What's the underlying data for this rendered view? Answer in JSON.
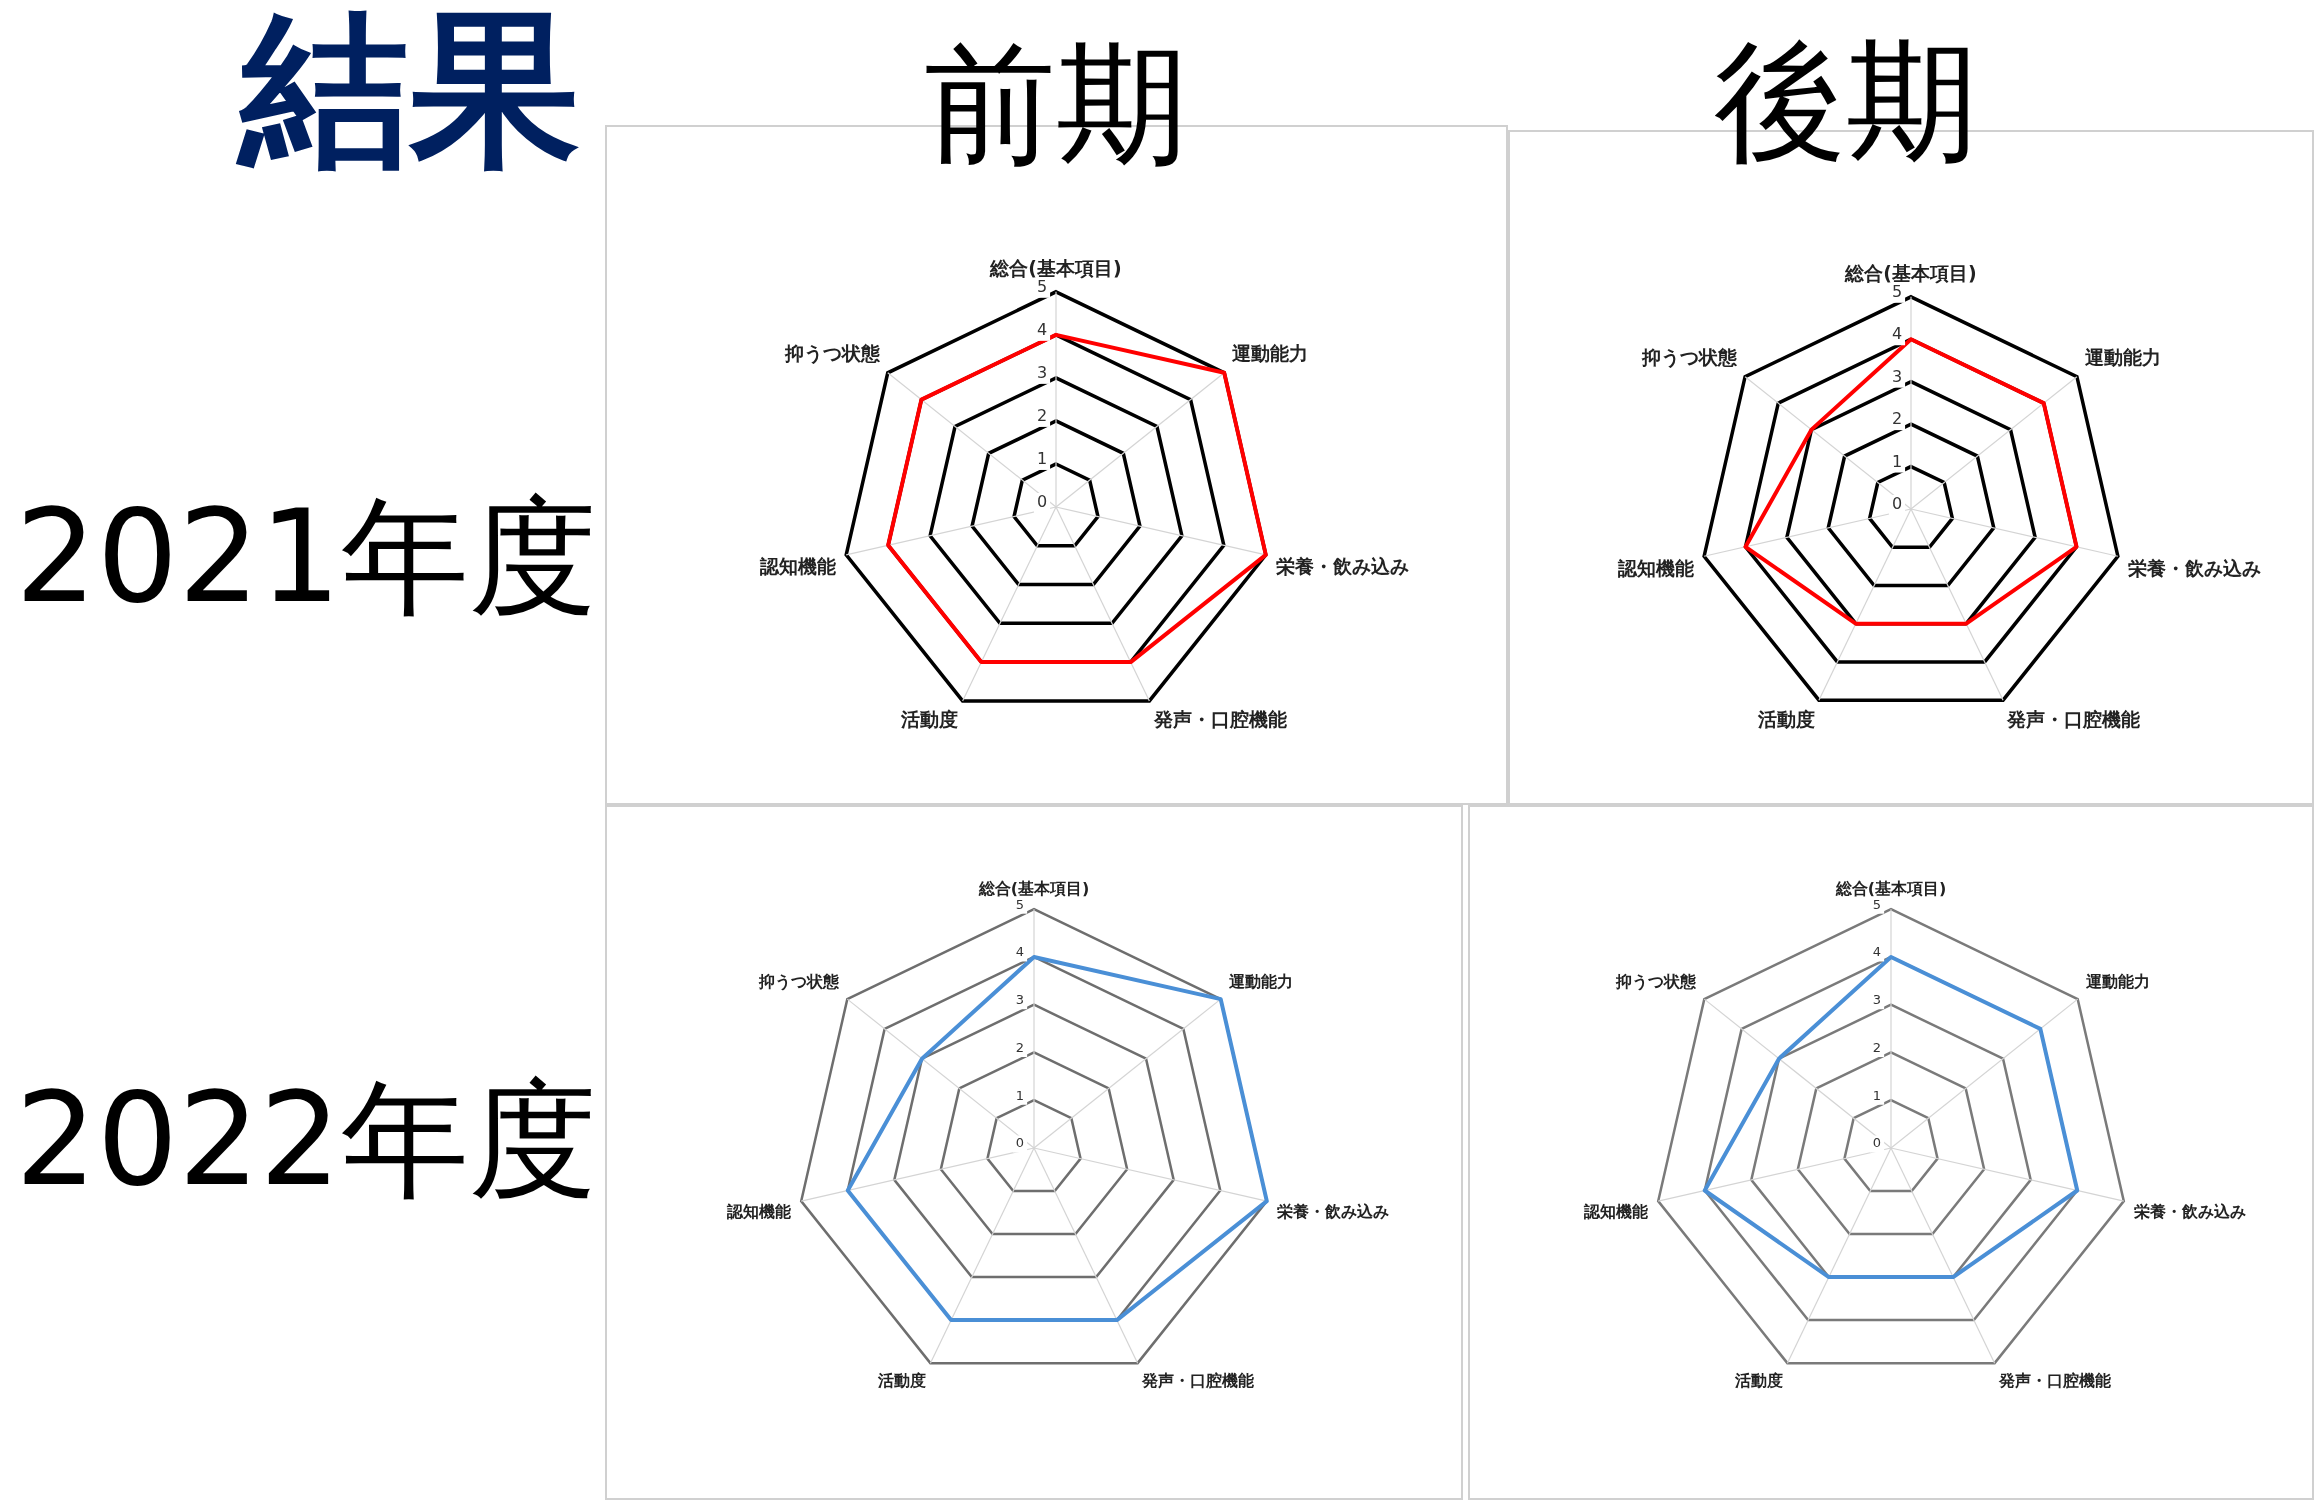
{
  "chart_data": [
    {
      "type": "radar",
      "title": "前期",
      "ylabel": "2021年度",
      "annotations": [
        "結果"
      ],
      "categories": [
        "総合(基本項目)",
        "運動能力",
        "栄養・飲み込み",
        "発声・口腔機能",
        "活動度",
        "認知機能",
        "抑うつ状態"
      ],
      "series": [
        {
          "color": "#ff0000",
          "values": [
            4,
            5,
            5,
            4,
            4,
            4,
            4
          ]
        }
      ],
      "ylim": [
        0,
        5
      ],
      "yticks": [
        0,
        1,
        2,
        3,
        4,
        5
      ],
      "grid": true,
      "marker": "none"
    },
    {
      "type": "radar",
      "title": "後期",
      "categories": [
        "総合(基本項目)",
        "運動能力",
        "栄養・飲み込み",
        "発声・口腔機能",
        "活動度",
        "認知機能",
        "抑うつ状態"
      ],
      "series": [
        {
          "color": "#ff0000",
          "values": [
            4,
            4,
            4,
            3,
            3,
            4,
            3
          ]
        }
      ],
      "ylim": [
        0,
        5
      ],
      "yticks": [
        0,
        1,
        2,
        3,
        4,
        5
      ],
      "grid": true,
      "marker": "none"
    },
    {
      "type": "radar",
      "ylabel": "2022年度",
      "categories": [
        "総合(基本項目)",
        "運動能力",
        "栄養・飲み込み",
        "発声・口腔機能",
        "活動度",
        "認知機能",
        "抑うつ状態"
      ],
      "series": [
        {
          "color": "#4a8fd6",
          "values": [
            4,
            5,
            5,
            4,
            4,
            4,
            3
          ]
        }
      ],
      "ylim": [
        0,
        5
      ],
      "yticks": [
        0,
        1,
        2,
        3,
        4,
        5
      ],
      "grid": true,
      "marker": "none"
    },
    {
      "type": "radar",
      "categories": [
        "総合(基本項目)",
        "運動能力",
        "栄養・飲み込み",
        "発声・口腔機能",
        "活動度",
        "認知機能",
        "抑うつ状態"
      ],
      "series": [
        {
          "color": "#4a8fd6",
          "values": [
            4,
            4,
            4,
            3,
            3,
            4,
            3
          ]
        }
      ],
      "ylim": [
        0,
        5
      ],
      "yticks": [
        0,
        1,
        2,
        3,
        4,
        5
      ],
      "grid": true,
      "marker": "none"
    }
  ]
}
